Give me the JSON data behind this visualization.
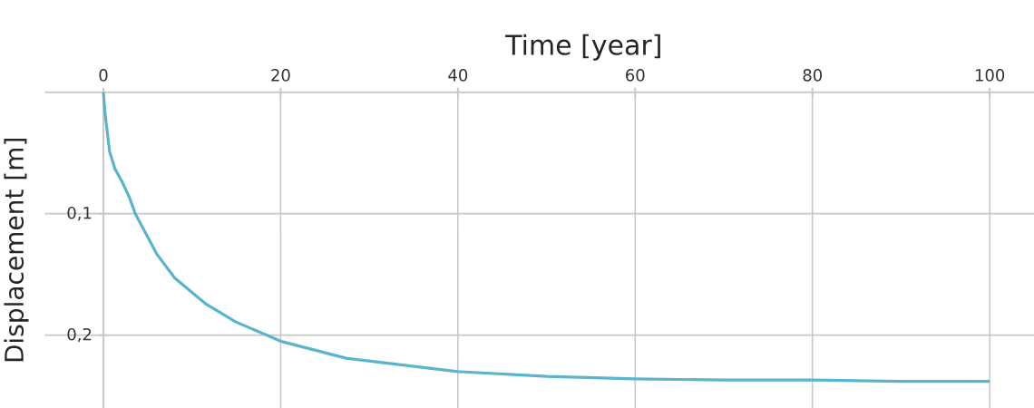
{
  "chart_data": {
    "type": "line",
    "xlabel": "Time [year]",
    "ylabel": "Displacement [m]",
    "x": [
      0,
      0.17,
      0.7,
      1.3,
      2.06,
      2.9,
      3.6,
      6.0,
      8.06,
      11.5,
      14.9,
      20,
      27.4,
      40,
      50,
      60,
      70,
      80,
      90,
      100
    ],
    "series": [
      {
        "color": "#5ab4cc",
        "values": [
          0,
          0.016,
          0.049,
          0.063,
          0.073,
          0.086,
          0.1,
          0.133,
          0.153,
          0.174,
          0.189,
          0.205,
          0.219,
          0.23,
          0.234,
          0.236,
          0.237,
          0.237,
          0.238,
          0.238
        ]
      }
    ],
    "xlim": [
      -6.6,
      105
    ],
    "ylim": [
      0.26,
      0
    ],
    "xticks": [
      0,
      20,
      40,
      60,
      80,
      100
    ],
    "yticks": [
      {
        "value": 0.1,
        "label": "0,1"
      },
      {
        "value": 0.2,
        "label": "0,2"
      }
    ],
    "grid": true,
    "marker": "none",
    "line_style": "solid"
  }
}
